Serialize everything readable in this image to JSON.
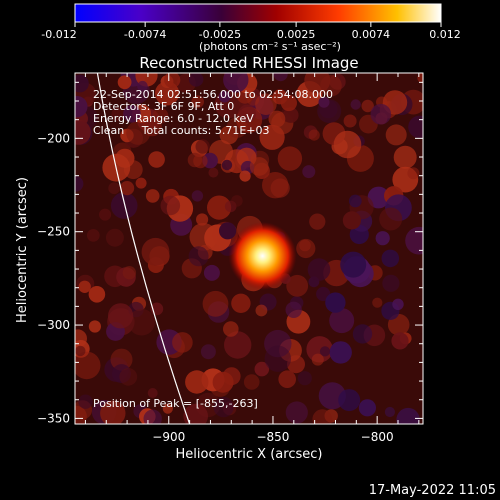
{
  "colorbar": {
    "ticks": [
      "-0.012",
      "-0.0074",
      "-0.0025",
      "0.0025",
      "0.0074",
      "0.012"
    ],
    "unit_label": "(photons cm⁻² s⁻¹ asec⁻²)",
    "range": [
      -0.012,
      0.012
    ],
    "colors": [
      "#0000ff",
      "#5a00b4",
      "#3a0030",
      "#b00000",
      "#ff4000",
      "#ffc000",
      "#ffffff"
    ]
  },
  "chart_data": {
    "type": "heatmap",
    "title": "Reconstructed RHESSI Image",
    "xlabel": "Heliocentric X (arcsec)",
    "ylabel": "Heliocentric Y (arcsec)",
    "xlim": [
      -945,
      -778
    ],
    "ylim": [
      -353,
      -165
    ],
    "x_ticks": [
      -900,
      -850,
      -800
    ],
    "y_ticks": [
      -200,
      -250,
      -300,
      -350
    ],
    "peak": [
      -855,
      -263
    ],
    "limb_line": {
      "x": [
        -935,
        -890
      ],
      "y": [
        -160,
        -353
      ]
    },
    "info_lines": [
      "22-Sep-2014 02:51:56.000 to 02:54:08.000",
      "Detectors: 3F 6F 9F, Att 0",
      "Energy Range: 6.0 - 12.0 keV",
      "Clean     Total counts: 5.71E+03"
    ],
    "peak_label": "Position of Peak = [-855,-263]"
  },
  "footer": {
    "date": "17-May-2022 11:05"
  }
}
